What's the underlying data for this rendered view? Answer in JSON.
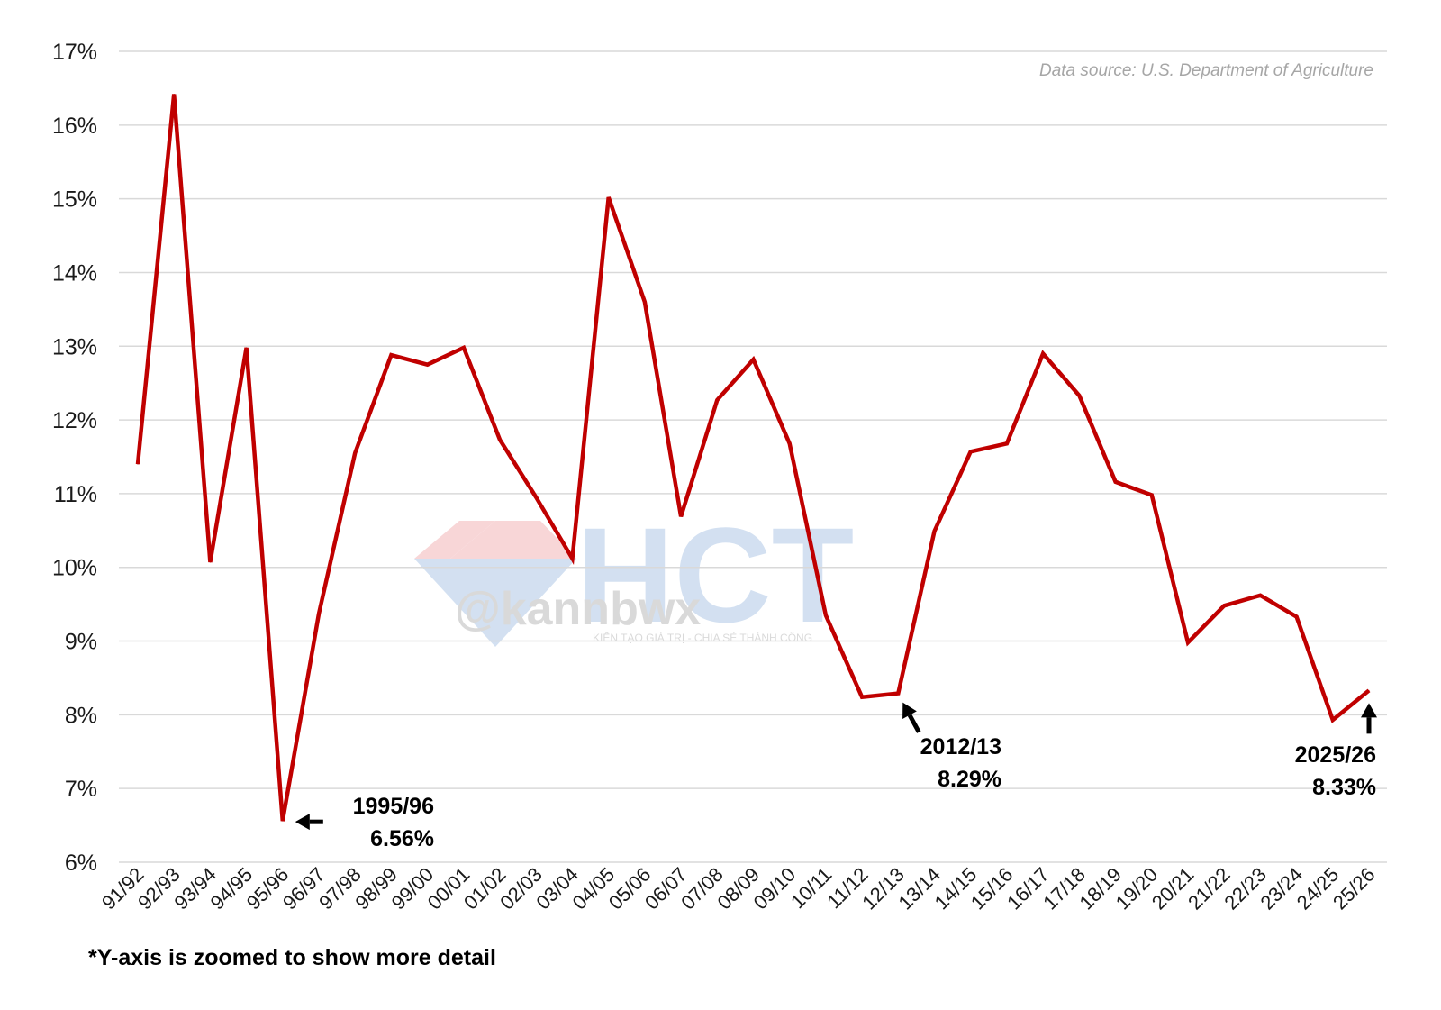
{
  "source_note": "Data source: U.S. Department of Agriculture",
  "footnote": "*Y-axis is zoomed to show more detail",
  "watermark": {
    "logo_text": "HCT",
    "handle": "@kannbwx",
    "tagline": "KIẾN TẠO GIÁ TRỊ - CHIA SẺ THÀNH CÔNG"
  },
  "colors": {
    "line": "#c00000",
    "grid": "#d9d9d9",
    "text": "#1a1a1a",
    "source": "#a6a6a6"
  },
  "chart_data": {
    "type": "line",
    "categories": [
      "91/92",
      "92/93",
      "93/94",
      "94/95",
      "95/96",
      "96/97",
      "97/98",
      "98/99",
      "99/00",
      "00/01",
      "01/02",
      "02/03",
      "03/04",
      "04/05",
      "05/06",
      "06/07",
      "07/08",
      "08/09",
      "09/10",
      "10/11",
      "11/12",
      "12/13",
      "13/14",
      "14/15",
      "15/16",
      "16/17",
      "17/18",
      "18/19",
      "19/20",
      "20/21",
      "21/22",
      "22/23",
      "23/24",
      "24/25",
      "25/26"
    ],
    "series": [
      {
        "values": [
          11.4,
          16.42,
          10.07,
          12.98,
          6.56,
          9.37,
          11.55,
          12.88,
          12.75,
          12.98,
          11.73,
          10.95,
          10.12,
          15.02,
          13.6,
          10.69,
          12.27,
          12.82,
          11.68,
          9.35,
          8.24,
          8.29,
          10.49,
          11.57,
          11.68,
          12.9,
          12.33,
          11.16,
          10.98,
          8.98,
          9.48,
          9.62,
          9.33,
          7.93,
          8.33
        ]
      }
    ],
    "ylim": [
      6,
      17
    ],
    "yticks": [
      6,
      7,
      8,
      9,
      10,
      11,
      12,
      13,
      14,
      15,
      16,
      17
    ],
    "ytick_labels": [
      "6%",
      "7%",
      "8%",
      "9%",
      "10%",
      "11%",
      "12%",
      "13%",
      "14%",
      "15%",
      "16%",
      "17%"
    ],
    "grid": true,
    "legend": "none",
    "annotations": [
      {
        "category": "95/96",
        "value": 6.56,
        "label_year": "1995/96",
        "label_value": "6.56%",
        "arrow": "left"
      },
      {
        "category": "12/13",
        "value": 8.29,
        "label_year": "2012/13",
        "label_value": "8.29%",
        "arrow": "up-left"
      },
      {
        "category": "25/26",
        "value": 8.33,
        "label_year": "2025/26",
        "label_value": "8.33%",
        "arrow": "up"
      }
    ]
  }
}
